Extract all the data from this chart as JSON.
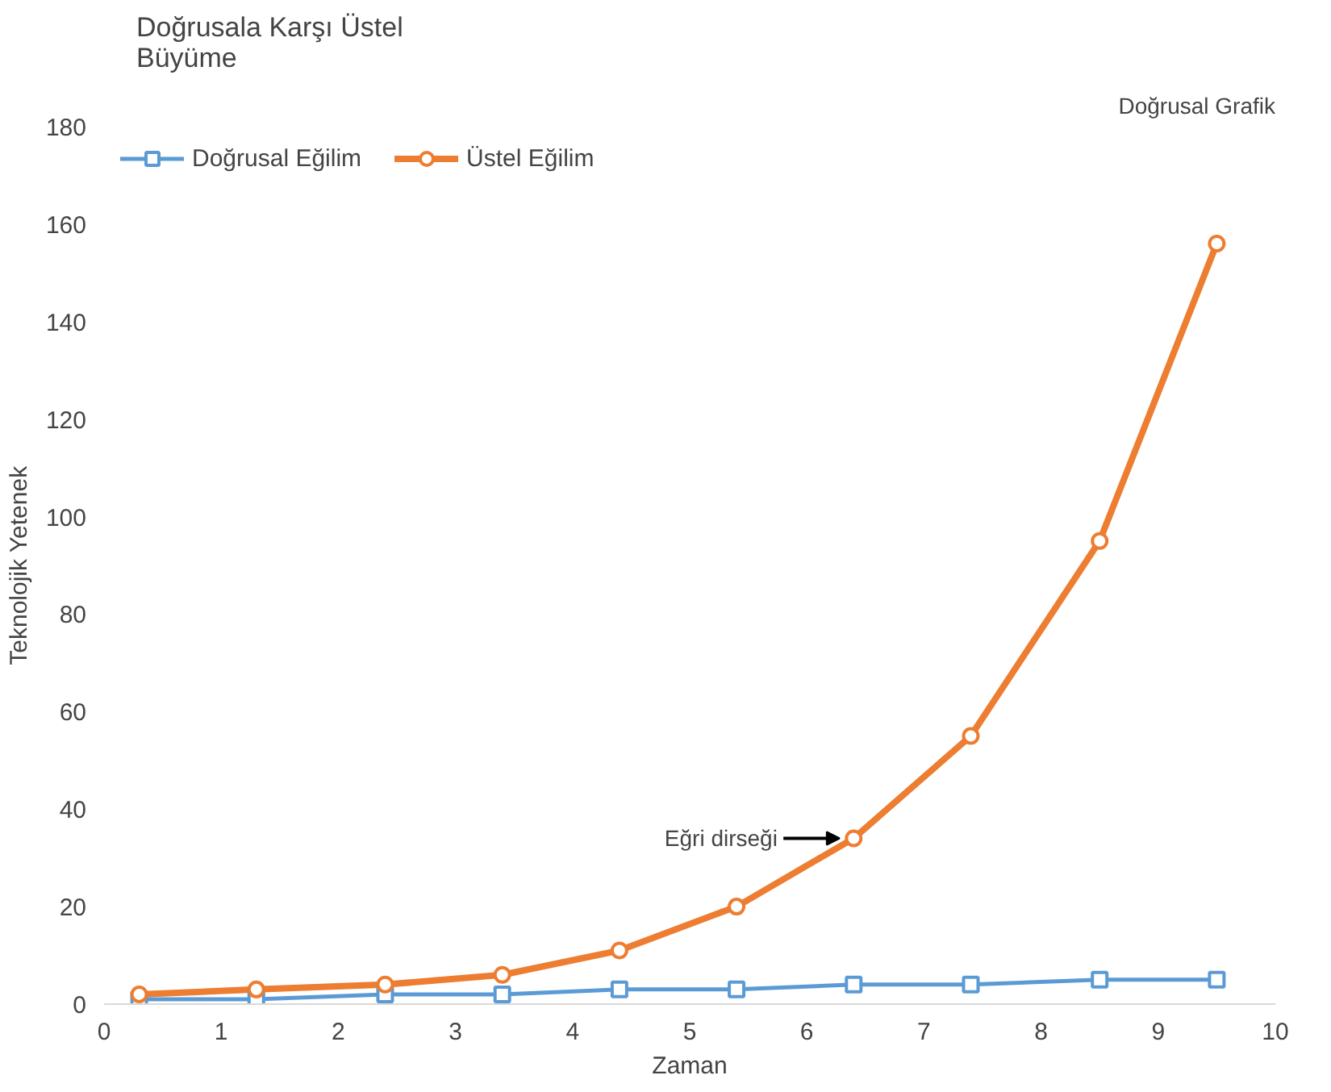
{
  "chart_data": {
    "type": "line",
    "title": "Doğrusala Karşı Üstel\nBüyüme",
    "xlabel": "Zaman",
    "ylabel": "Teknolojik Yetenek",
    "x": [
      0.3,
      1.3,
      2.4,
      3.4,
      4.4,
      5.4,
      6.4,
      7.4,
      8.5,
      9.5
    ],
    "series": [
      {
        "name": "Doğrusal Eğilim",
        "color": "#5b9bd5",
        "marker": "square",
        "values": [
          1,
          1,
          2,
          2,
          3,
          3,
          4,
          4,
          5,
          5
        ]
      },
      {
        "name": "Üstel Eğilim",
        "color": "#ed7d31",
        "marker": "circle",
        "values": [
          2,
          3,
          4,
          6,
          11,
          20,
          34,
          55,
          95,
          156
        ]
      }
    ],
    "xlim": [
      0,
      10
    ],
    "xticks": [
      0,
      1,
      2,
      3,
      4,
      5,
      6,
      7,
      8,
      9,
      10
    ],
    "ylim": [
      0,
      180
    ],
    "yticks": [
      0,
      20,
      40,
      60,
      80,
      100,
      120,
      140,
      160,
      180
    ],
    "grid": false,
    "legend": "top left",
    "annotations": [
      "Doğrusal Grafik",
      {
        "text": "Eğri dirseği",
        "x": 6.4,
        "y": 34
      }
    ]
  }
}
